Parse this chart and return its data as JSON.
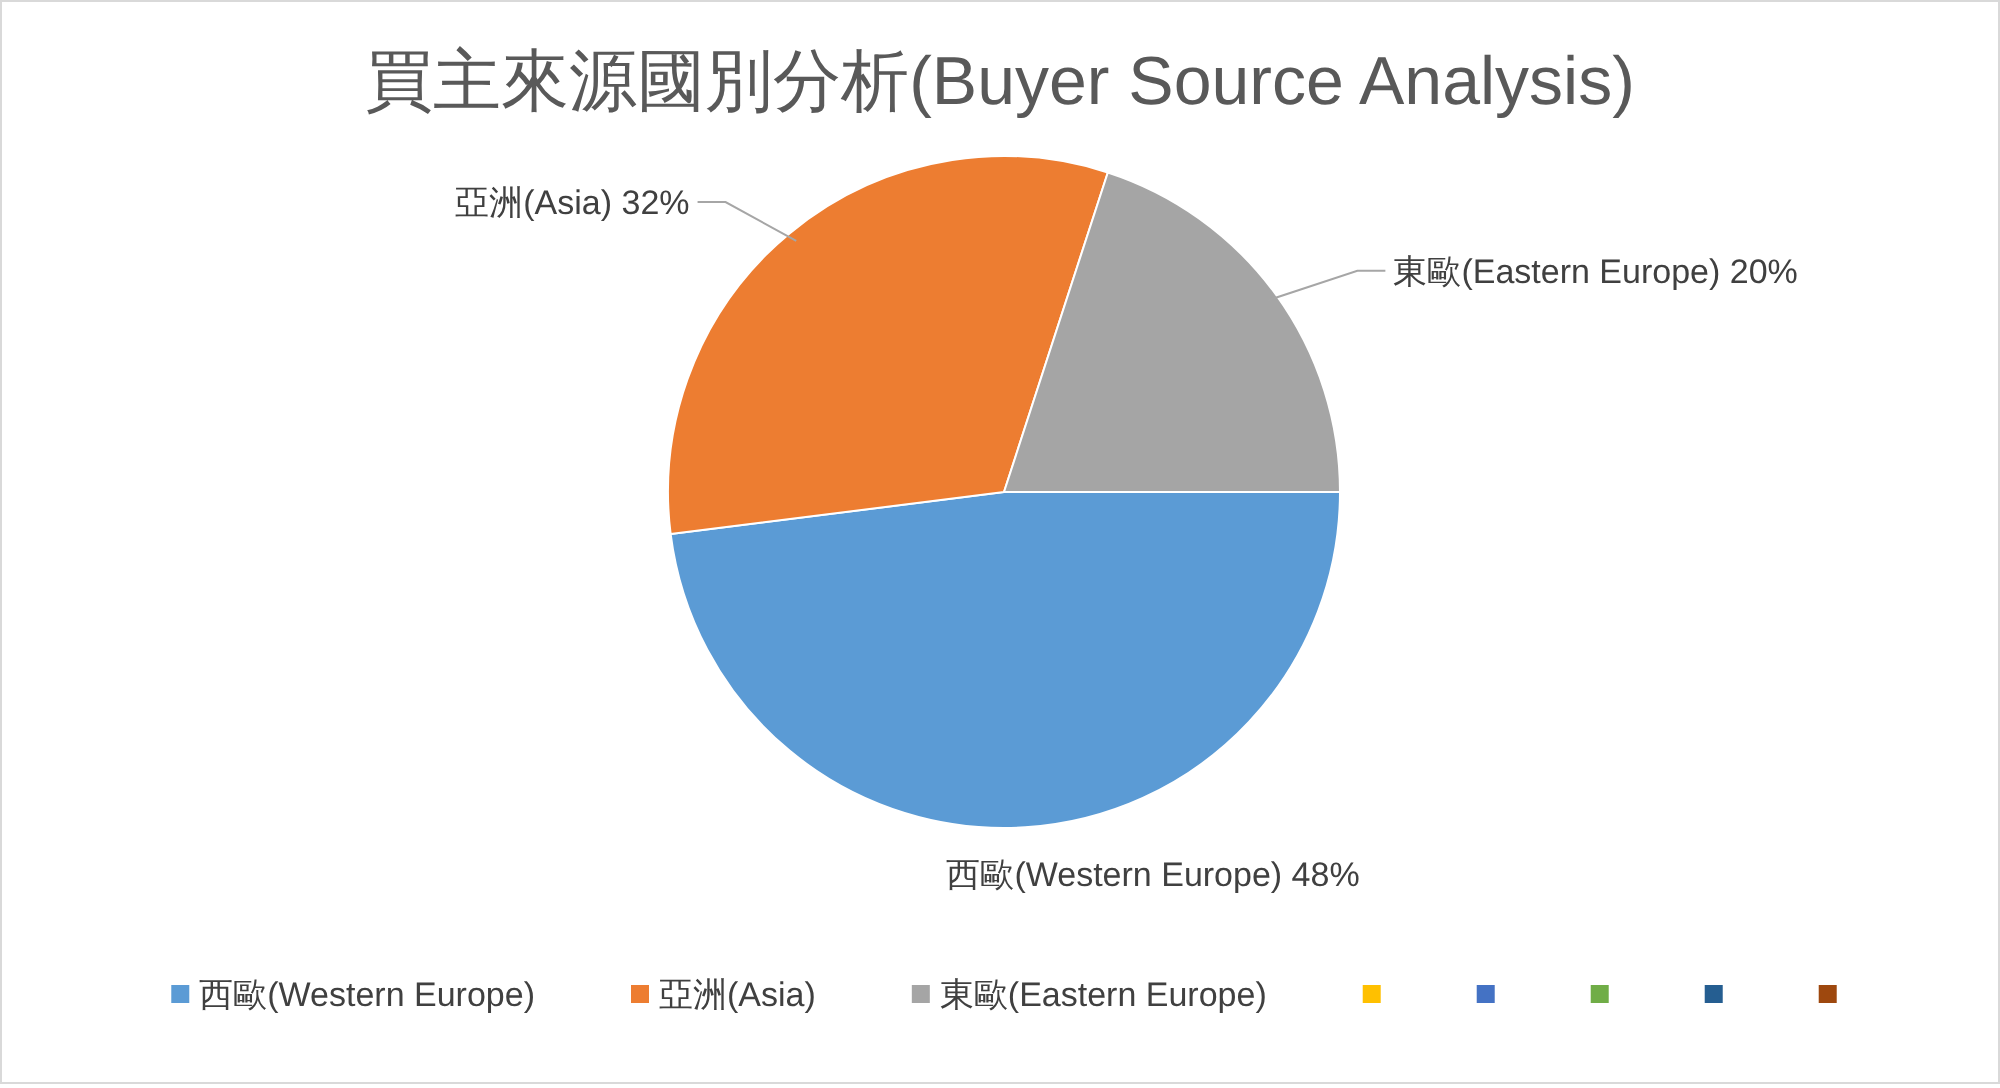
{
  "chart_data": {
    "type": "pie",
    "title": "買主來源國別分析(Buyer Source Analysis)",
    "categories": [
      "西歐(Western Europe)",
      "亞洲(Asia)",
      "東歐(Eastern Europe)",
      null,
      null,
      null,
      null,
      null
    ],
    "values": [
      48,
      32,
      20,
      0,
      0,
      0,
      0,
      0
    ],
    "colors": [
      "#5b9bd5",
      "#ed7d31",
      "#a5a5a5",
      "#ffc000",
      "#4472c4",
      "#70ad47",
      "#255e91",
      "#9e480e"
    ],
    "value_labels": [
      "西歐(Western Europe) 48%",
      "亞洲(Asia) 32%",
      "東歐(Eastern Europe) 20%",
      null,
      null,
      null,
      null,
      null
    ],
    "legend": "bottom"
  }
}
